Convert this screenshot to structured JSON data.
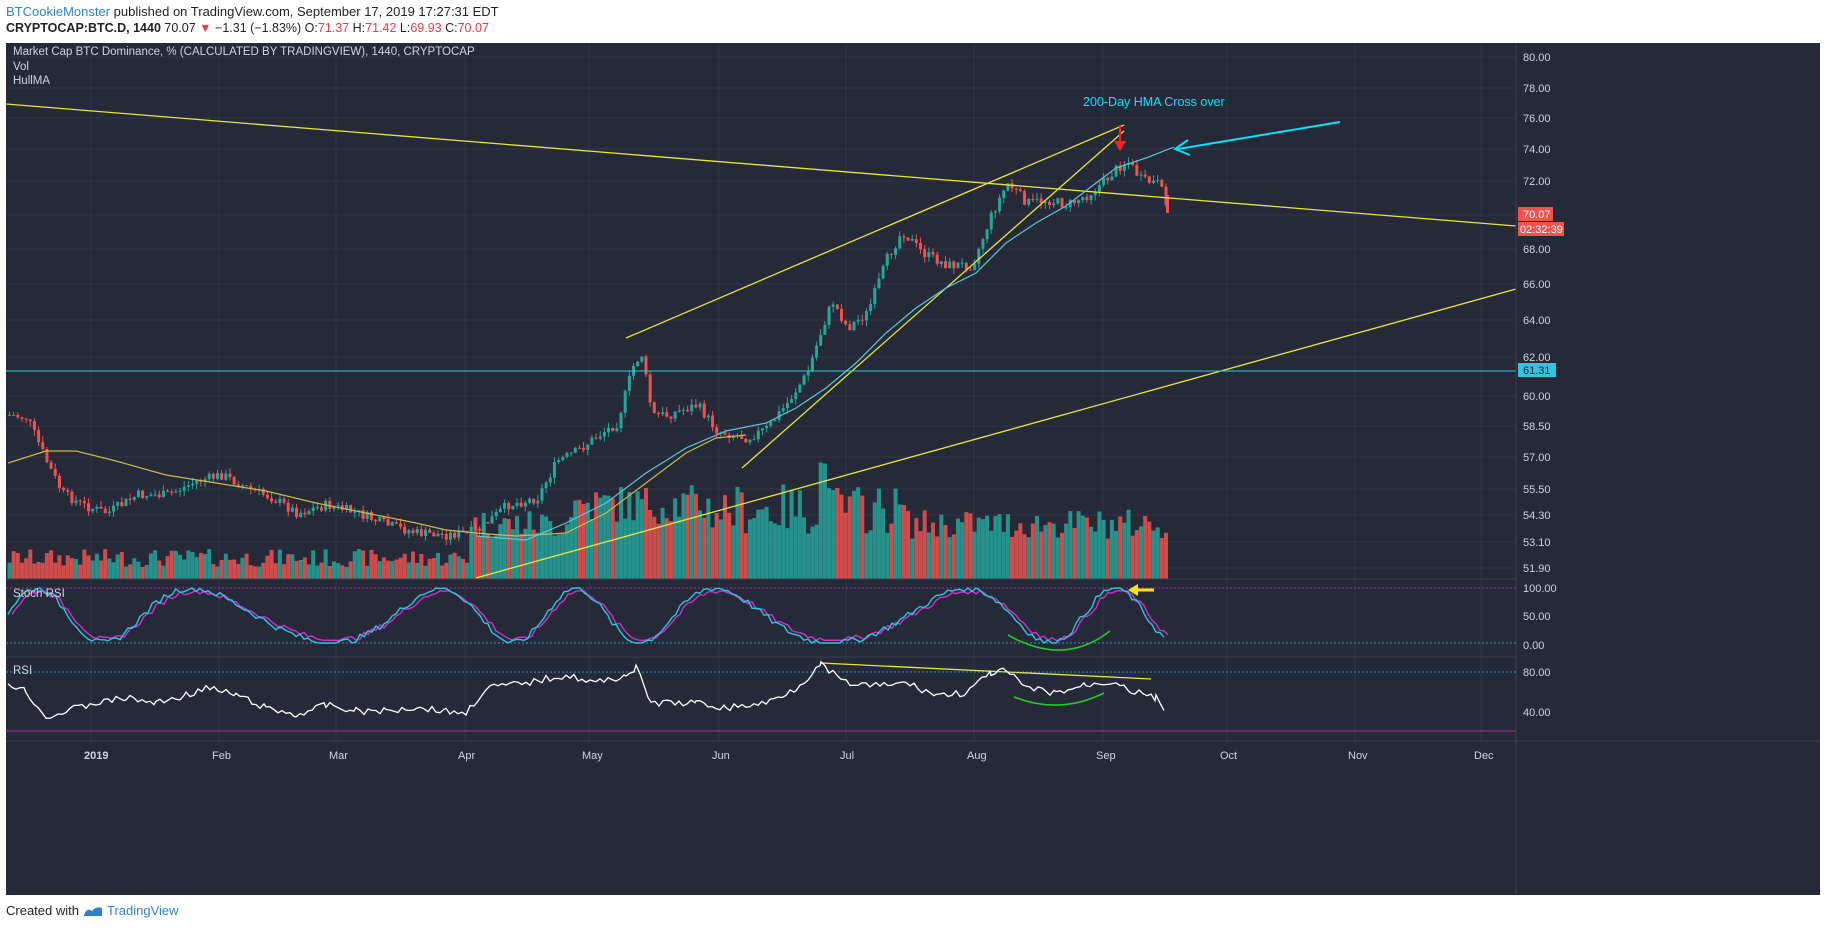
{
  "header": {
    "author": "BTCookieMonster",
    "published_text": "published on TradingView.com, September 17, 2019 17:27:31 EDT",
    "symbol": "CRYPTOCAP:BTC.D, 1440",
    "last": "70.07",
    "change_arrow": "▼",
    "change": "−1.31 (−1.83%)",
    "open_label": "O:",
    "open": "71.37",
    "high_label": "H:",
    "high": "71.42",
    "low_label": "L:",
    "low": "69.93",
    "close_label": "C:",
    "close": "70.07"
  },
  "legend": {
    "main": "Market Cap BTC Dominance, % (CALCULATED BY TRADINGVIEW), 1440, CRYPTOCAP",
    "vol": "Vol",
    "hma": "HullMA",
    "stoch": "Stoch RSI",
    "rsi": "RSI"
  },
  "annotation": {
    "text": "200-Day HMA Cross over"
  },
  "price_axis": {
    "ticks": [
      "80.00",
      "78.00",
      "76.00",
      "74.00",
      "72.00",
      "70.00",
      "68.00",
      "66.00",
      "64.00",
      "62.00",
      "60.00",
      "58.50",
      "57.00",
      "55.50",
      "54.30",
      "53.10",
      "51.90"
    ],
    "last_price": "70.07",
    "countdown": "02:32:39",
    "hline_label": "61.31"
  },
  "stoch_axis": {
    "ticks": [
      "100.00",
      "50.00",
      "0.00"
    ]
  },
  "rsi_axis": {
    "ticks": [
      "80.00",
      "40.00"
    ]
  },
  "time_axis": {
    "labels": [
      "2019",
      "Feb",
      "Mar",
      "Apr",
      "May",
      "Jun",
      "Jul",
      "Aug",
      "Sep",
      "Oct",
      "Nov",
      "Dec"
    ]
  },
  "colors": {
    "background": "#262a38",
    "up": "#26a69a",
    "down": "#ef5350",
    "trendline": "#e6e63c",
    "hma": "#5ec8d6",
    "annotation": "#00e5ff",
    "stoch_k": "#2ec7e0",
    "stoch_d": "#cc33cc",
    "rsi": "#ffffff",
    "curve": "#22cc22"
  },
  "footer": {
    "created_with": "Created with",
    "brand": "TradingView"
  }
}
